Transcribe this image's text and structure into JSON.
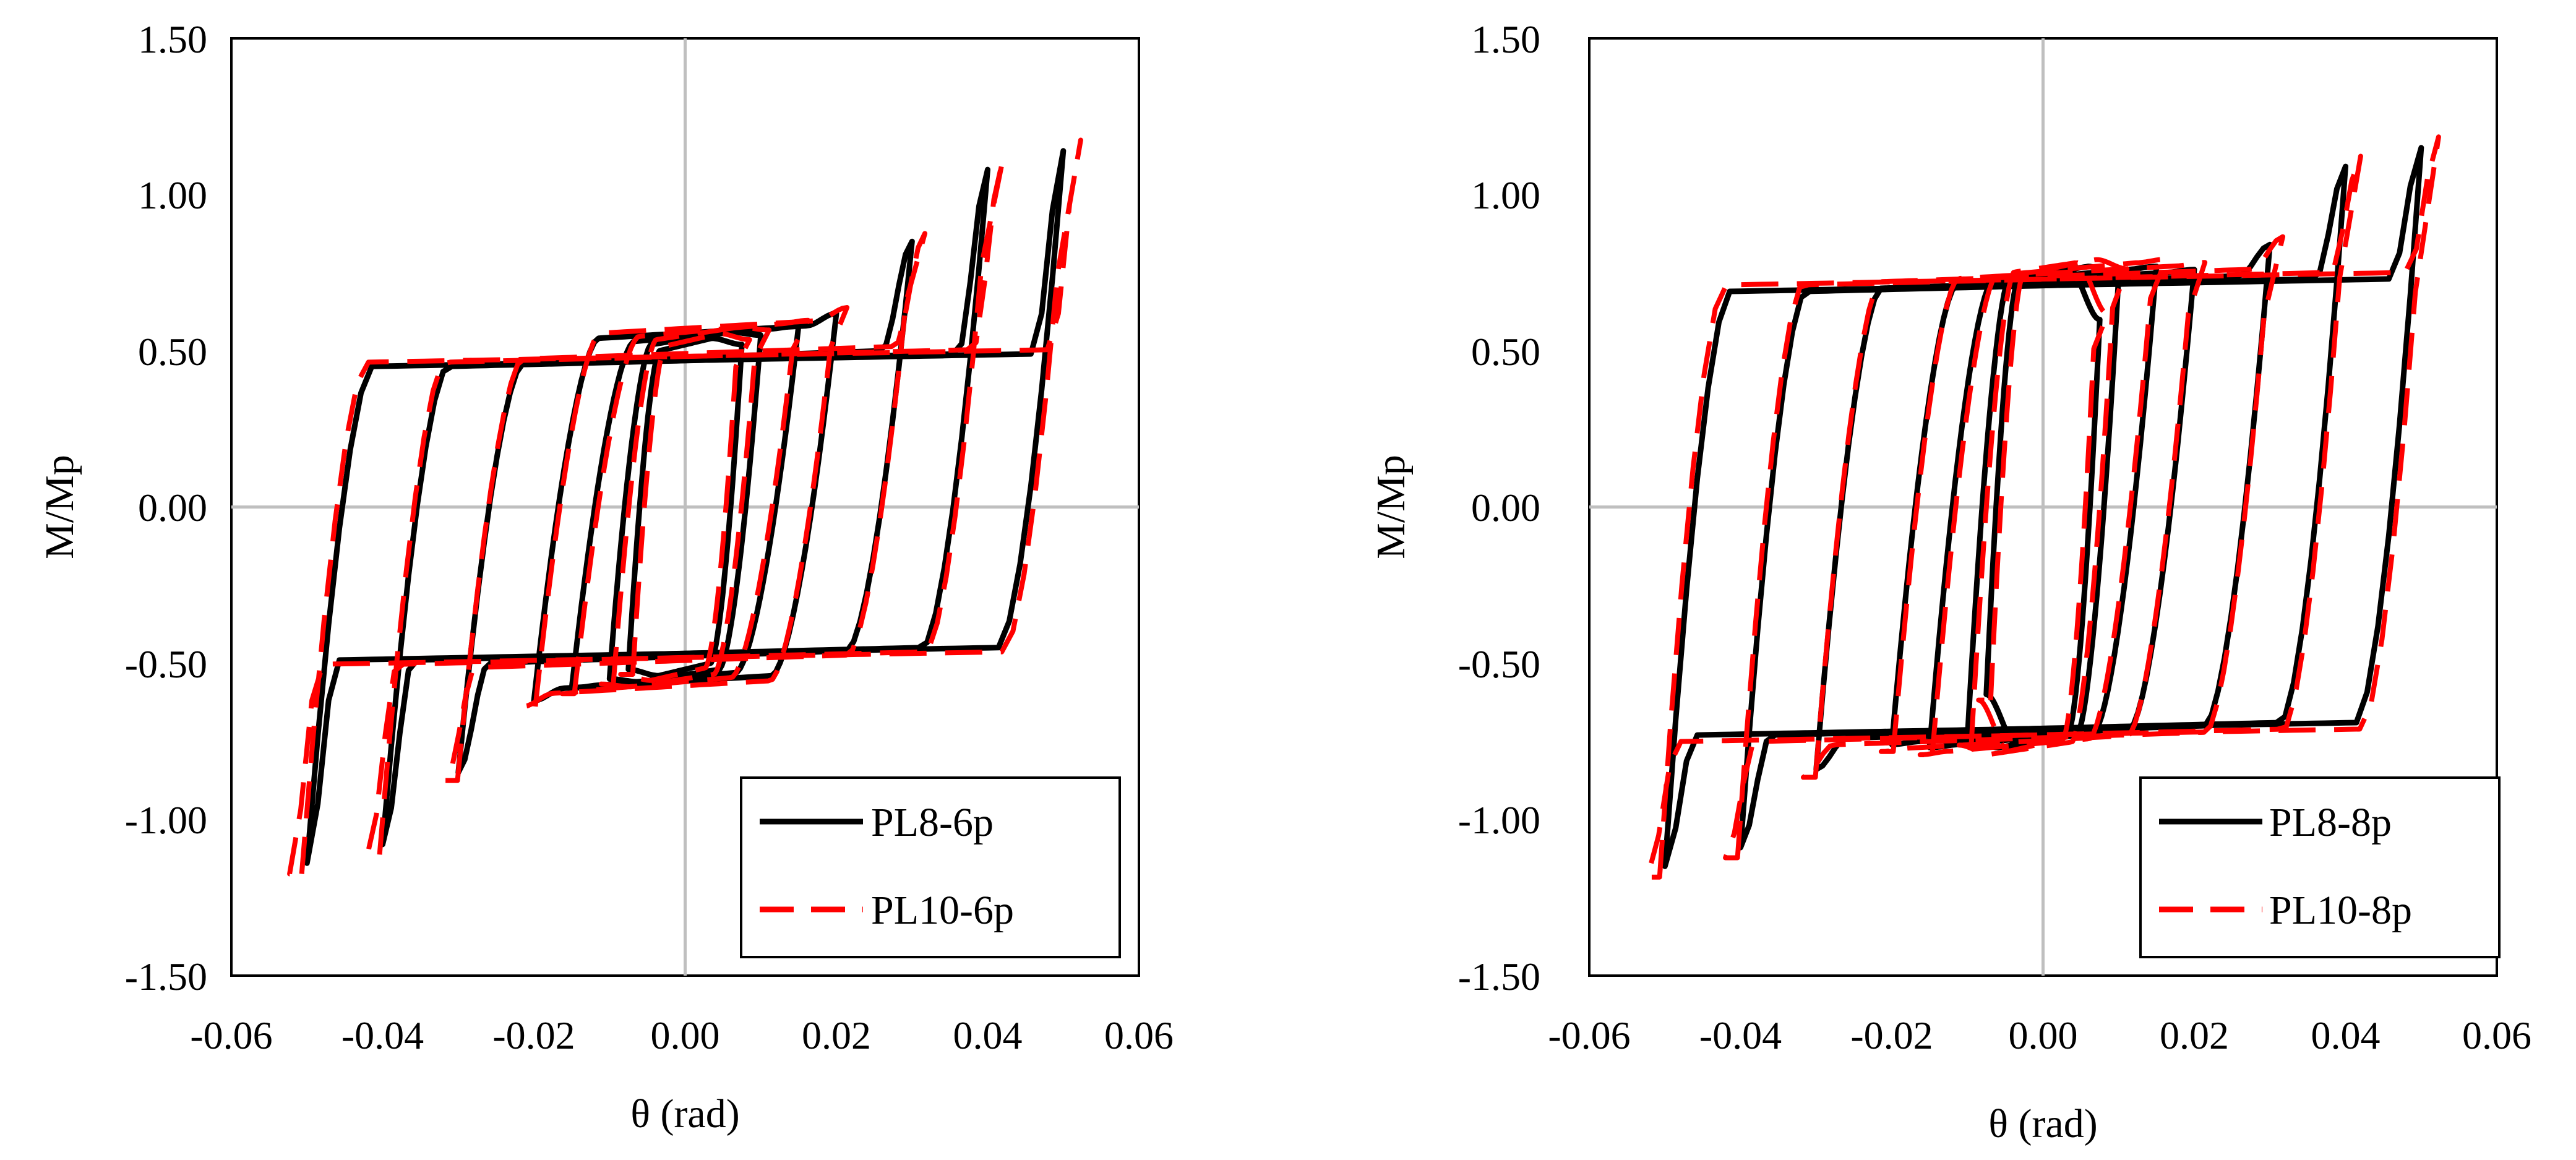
{
  "colors": {
    "series_a": "#000000",
    "series_b": "#ff0000",
    "grid": "#bfbfbf",
    "frame": "#000000"
  },
  "chart_data": [
    {
      "type": "line",
      "title": "",
      "xlabel": "θ (rad)",
      "ylabel": "M/Mp",
      "xlim": [
        -0.06,
        0.06
      ],
      "ylim": [
        -1.5,
        1.5
      ],
      "xticks": [
        "-0.06",
        "-0.04",
        "-0.02",
        "0.00",
        "0.02",
        "0.04",
        "0.06"
      ],
      "yticks": [
        "1.50",
        "1.00",
        "0.50",
        "0.00",
        "-0.50",
        "-1.00",
        "-1.50"
      ],
      "legend_position": "bottom-right",
      "cycles": [
        {
          "amp": 0.0075,
          "peak": 0.52,
          "flat": 0.5
        },
        {
          "amp": 0.01,
          "peak": 0.55,
          "flat": 0.52
        },
        {
          "amp": 0.015,
          "peak": 0.58,
          "flat": 0.53
        },
        {
          "amp": 0.02,
          "peak": 0.62,
          "flat": 0.54
        },
        {
          "amp": 0.03,
          "peak": 0.85,
          "flat": 0.46
        },
        {
          "amp": 0.04,
          "peak": 1.08,
          "flat": 0.45
        },
        {
          "amp": 0.05,
          "peak": 1.14,
          "flat": 0.45
        }
      ],
      "series": [
        {
          "name": "PL8-6p",
          "style": "solid",
          "color": "#000000",
          "scale": 1.0,
          "shift": 0.0
        },
        {
          "name": "PL10-6p",
          "style": "dashed",
          "color": "#ff0000",
          "scale": 1.03,
          "shift": 0.0008
        }
      ]
    },
    {
      "type": "line",
      "title": "",
      "xlabel": "θ (rad)",
      "ylabel": "M/Mp",
      "xlim": [
        -0.06,
        0.06
      ],
      "ylim": [
        -1.5,
        1.5
      ],
      "xticks": [
        "-0.06",
        "-0.04",
        "-0.02",
        "0.00",
        "0.02",
        "0.04",
        "0.06"
      ],
      "yticks": [
        "1.50",
        "1.00",
        "0.50",
        "0.00",
        "-0.50",
        "-1.00",
        "-1.50"
      ],
      "legend_position": "bottom-right",
      "cycles": [
        {
          "amp": 0.0075,
          "peak": 0.6,
          "flat": 0.72
        },
        {
          "amp": 0.01,
          "peak": 0.74,
          "flat": 0.73
        },
        {
          "amp": 0.015,
          "peak": 0.77,
          "flat": 0.72
        },
        {
          "amp": 0.02,
          "peak": 0.76,
          "flat": 0.71
        },
        {
          "amp": 0.03,
          "peak": 0.84,
          "flat": 0.7
        },
        {
          "amp": 0.04,
          "peak": 1.09,
          "flat": 0.69
        },
        {
          "amp": 0.05,
          "peak": 1.15,
          "flat": 0.69
        }
      ],
      "series": [
        {
          "name": "PL8-8p",
          "style": "solid",
          "color": "#000000",
          "scale": 1.0,
          "shift": 0.0
        },
        {
          "name": "PL10-8p",
          "style": "dashed",
          "color": "#ff0000",
          "scale": 1.03,
          "shift": 0.0008
        }
      ]
    }
  ]
}
